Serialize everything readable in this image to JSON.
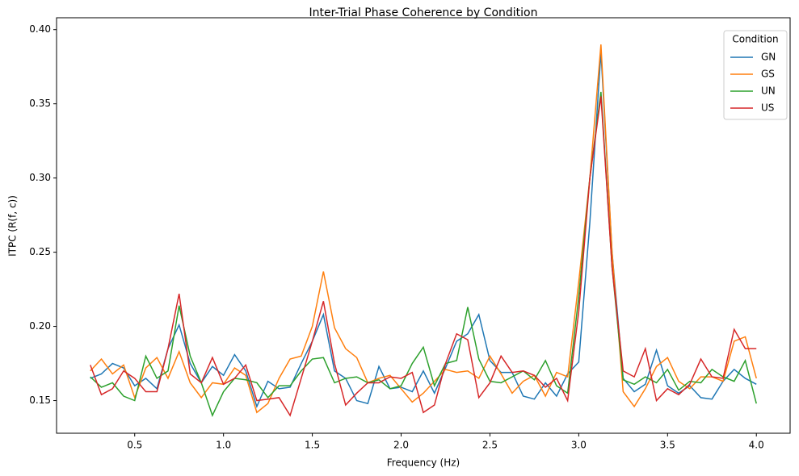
{
  "chart_data": {
    "type": "line",
    "title": "Inter-Trial Phase Coherence by Condition",
    "xlabel": "Frequency (Hz)",
    "ylabel": "ITPC (R(f, c))",
    "x": [
      0.25,
      0.3125,
      0.375,
      0.4375,
      0.5,
      0.5625,
      0.625,
      0.6875,
      0.75,
      0.8125,
      0.875,
      0.9375,
      1.0,
      1.0625,
      1.125,
      1.1875,
      1.25,
      1.3125,
      1.375,
      1.4375,
      1.5,
      1.5625,
      1.625,
      1.6875,
      1.75,
      1.8125,
      1.875,
      1.9375,
      2.0,
      2.0625,
      2.125,
      2.1875,
      2.25,
      2.3125,
      2.375,
      2.4375,
      2.5,
      2.5625,
      2.625,
      2.6875,
      2.75,
      2.8125,
      2.875,
      2.9375,
      3.0,
      3.0625,
      3.125,
      3.1875,
      3.25,
      3.3125,
      3.375,
      3.4375,
      3.5,
      3.5625,
      3.625,
      3.6875,
      3.75,
      3.8125,
      3.875,
      3.9375,
      4.0
    ],
    "series": [
      {
        "name": "GN",
        "color": "#1f77b4",
        "values": [
          0.165,
          0.168,
          0.175,
          0.172,
          0.16,
          0.165,
          0.158,
          0.185,
          0.201,
          0.175,
          0.162,
          0.173,
          0.167,
          0.181,
          0.17,
          0.146,
          0.163,
          0.158,
          0.159,
          0.175,
          0.19,
          0.208,
          0.17,
          0.165,
          0.15,
          0.148,
          0.173,
          0.158,
          0.159,
          0.156,
          0.17,
          0.155,
          0.172,
          0.19,
          0.195,
          0.208,
          0.177,
          0.169,
          0.169,
          0.153,
          0.151,
          0.162,
          0.153,
          0.168,
          0.176,
          0.27,
          0.385,
          0.25,
          0.165,
          0.156,
          0.161,
          0.184,
          0.16,
          0.155,
          0.16,
          0.152,
          0.151,
          0.163,
          0.171,
          0.165,
          0.161
        ]
      },
      {
        "name": "GS",
        "color": "#ff7f0e",
        "values": [
          0.17,
          0.178,
          0.168,
          0.174,
          0.152,
          0.172,
          0.179,
          0.165,
          0.183,
          0.162,
          0.152,
          0.162,
          0.161,
          0.172,
          0.167,
          0.142,
          0.148,
          0.165,
          0.178,
          0.18,
          0.2,
          0.237,
          0.199,
          0.185,
          0.179,
          0.162,
          0.165,
          0.167,
          0.158,
          0.149,
          0.155,
          0.163,
          0.171,
          0.169,
          0.17,
          0.165,
          0.18,
          0.168,
          0.155,
          0.163,
          0.167,
          0.153,
          0.169,
          0.166,
          0.23,
          0.3,
          0.39,
          0.25,
          0.156,
          0.146,
          0.158,
          0.173,
          0.179,
          0.163,
          0.158,
          0.166,
          0.166,
          0.163,
          0.19,
          0.193,
          0.165
        ]
      },
      {
        "name": "UN",
        "color": "#2ca02c",
        "values": [
          0.166,
          0.159,
          0.162,
          0.153,
          0.15,
          0.18,
          0.165,
          0.17,
          0.214,
          0.18,
          0.162,
          0.14,
          0.156,
          0.165,
          0.164,
          0.162,
          0.152,
          0.16,
          0.16,
          0.17,
          0.178,
          0.179,
          0.162,
          0.165,
          0.166,
          0.162,
          0.164,
          0.158,
          0.16,
          0.175,
          0.186,
          0.16,
          0.175,
          0.177,
          0.213,
          0.178,
          0.163,
          0.162,
          0.166,
          0.17,
          0.164,
          0.177,
          0.16,
          0.155,
          0.22,
          0.3,
          0.358,
          0.24,
          0.164,
          0.161,
          0.166,
          0.162,
          0.171,
          0.157,
          0.163,
          0.162,
          0.171,
          0.166,
          0.163,
          0.177,
          0.148
        ]
      },
      {
        "name": "US",
        "color": "#d62728",
        "values": [
          0.174,
          0.154,
          0.158,
          0.17,
          0.165,
          0.156,
          0.156,
          0.185,
          0.222,
          0.168,
          0.162,
          0.179,
          0.161,
          0.165,
          0.174,
          0.15,
          0.151,
          0.152,
          0.14,
          0.165,
          0.19,
          0.217,
          0.175,
          0.147,
          0.155,
          0.162,
          0.162,
          0.166,
          0.165,
          0.169,
          0.142,
          0.147,
          0.175,
          0.195,
          0.191,
          0.152,
          0.162,
          0.18,
          0.169,
          0.17,
          0.167,
          0.159,
          0.165,
          0.15,
          0.21,
          0.3,
          0.355,
          0.24,
          0.17,
          0.166,
          0.185,
          0.15,
          0.158,
          0.154,
          0.161,
          0.178,
          0.166,
          0.165,
          0.198,
          0.185,
          0.185
        ]
      }
    ],
    "legend_title": "Condition",
    "legend": "upper right",
    "xlim": [
      0.06,
      4.19
    ],
    "xticks": [
      0.5,
      {
        "value": 1,
        "label": "1.0"
      },
      1.5,
      {
        "value": 2,
        "label": "2.0"
      },
      2.5,
      {
        "value": 3,
        "label": "3.0"
      },
      3.5,
      {
        "value": 4,
        "label": "4.0"
      }
    ],
    "ylim": [
      0.128,
      0.408
    ],
    "yticks": [
      {
        "value": 0.15,
        "label": "0.15"
      },
      {
        "value": 0.2,
        "label": "0.20"
      },
      {
        "value": 0.25,
        "label": "0.25"
      },
      {
        "value": 0.3,
        "label": "0.30"
      },
      {
        "value": 0.35,
        "label": "0.35"
      },
      {
        "value": 0.4,
        "label": "0.40"
      }
    ],
    "grid": false
  }
}
